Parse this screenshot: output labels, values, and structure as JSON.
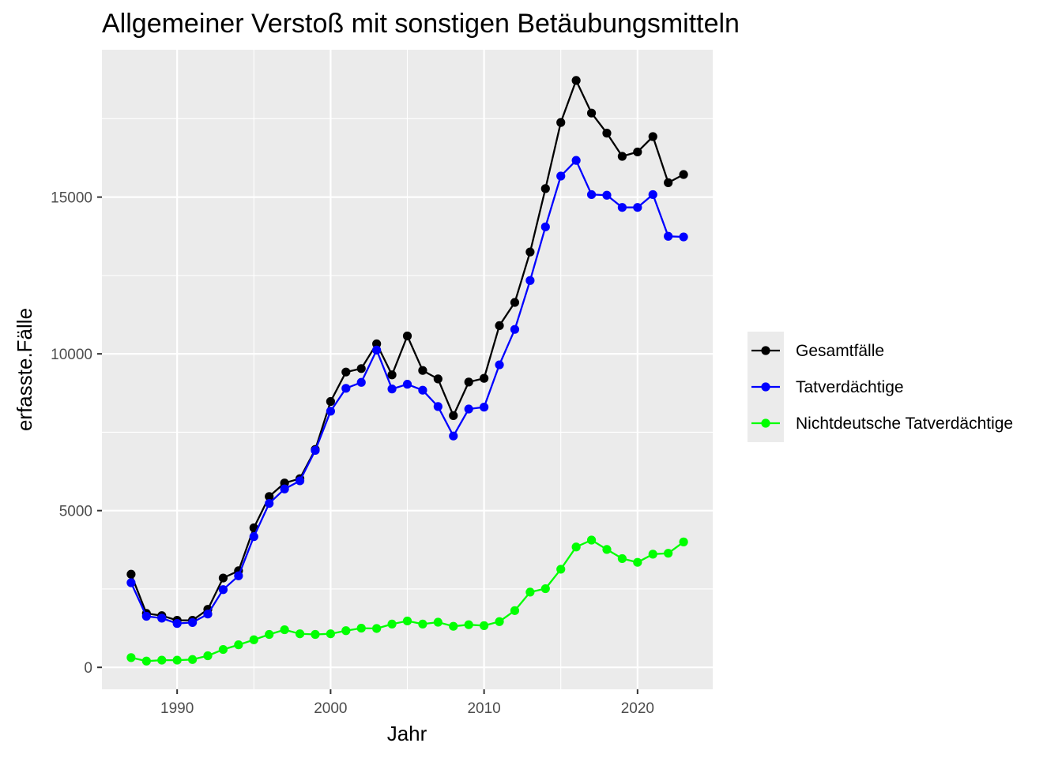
{
  "chart_data": {
    "type": "line",
    "title": "Allgemeiner Verstoß mit sonstigen Betäubungsmitteln",
    "xlabel": "Jahr",
    "ylabel": "erfasste.Fälle",
    "xlim": [
      1985.1,
      2024.9
    ],
    "ylim": [
      -700,
      19700
    ],
    "x_ticks": [
      1990,
      2000,
      2010,
      2020
    ],
    "y_ticks": [
      0,
      5000,
      10000,
      15000
    ],
    "x_tick_labels": [
      "1990",
      "2000",
      "2010",
      "2020"
    ],
    "y_tick_labels": [
      "0",
      "5000",
      "10000",
      "15000"
    ],
    "grid": true,
    "legend_position": "right",
    "panel_background": "#ebebeb",
    "x": [
      1987,
      1988,
      1989,
      1990,
      1991,
      1992,
      1993,
      1994,
      1995,
      1996,
      1997,
      1998,
      1999,
      2000,
      2001,
      2002,
      2003,
      2004,
      2005,
      2006,
      2007,
      2008,
      2009,
      2010,
      2011,
      2012,
      2013,
      2014,
      2015,
      2016,
      2017,
      2018,
      2019,
      2020,
      2021,
      2022,
      2023
    ],
    "series": [
      {
        "name": "Gesamtfälle",
        "color": "#000000",
        "values": [
          2970,
          1720,
          1650,
          1500,
          1500,
          1850,
          2850,
          3080,
          4450,
          5450,
          5880,
          6020,
          6950,
          8480,
          9420,
          9530,
          10320,
          9330,
          10570,
          9470,
          9200,
          8030,
          9100,
          9220,
          10900,
          11640,
          13250,
          15270,
          17380,
          18720,
          17680,
          17040,
          16300,
          16440,
          16930,
          15460,
          15720
        ]
      },
      {
        "name": "Tatverdächtige",
        "color": "#0000ff",
        "values": [
          2700,
          1630,
          1570,
          1400,
          1430,
          1700,
          2480,
          2920,
          4170,
          5230,
          5690,
          5950,
          6920,
          8170,
          8900,
          9090,
          10120,
          8880,
          9030,
          8840,
          8320,
          7380,
          8240,
          8300,
          9650,
          10780,
          12340,
          14050,
          15670,
          16170,
          15080,
          15060,
          14670,
          14670,
          15080,
          13750,
          13730
        ]
      },
      {
        "name": "Nichtdeutsche Tatverdächtige",
        "color": "#00ff00",
        "values": [
          310,
          200,
          230,
          230,
          250,
          370,
          570,
          720,
          880,
          1050,
          1200,
          1070,
          1050,
          1070,
          1170,
          1250,
          1240,
          1380,
          1480,
          1380,
          1440,
          1310,
          1360,
          1330,
          1460,
          1810,
          2400,
          2510,
          3130,
          3840,
          4060,
          3760,
          3470,
          3350,
          3610,
          3640,
          4000
        ]
      }
    ]
  }
}
